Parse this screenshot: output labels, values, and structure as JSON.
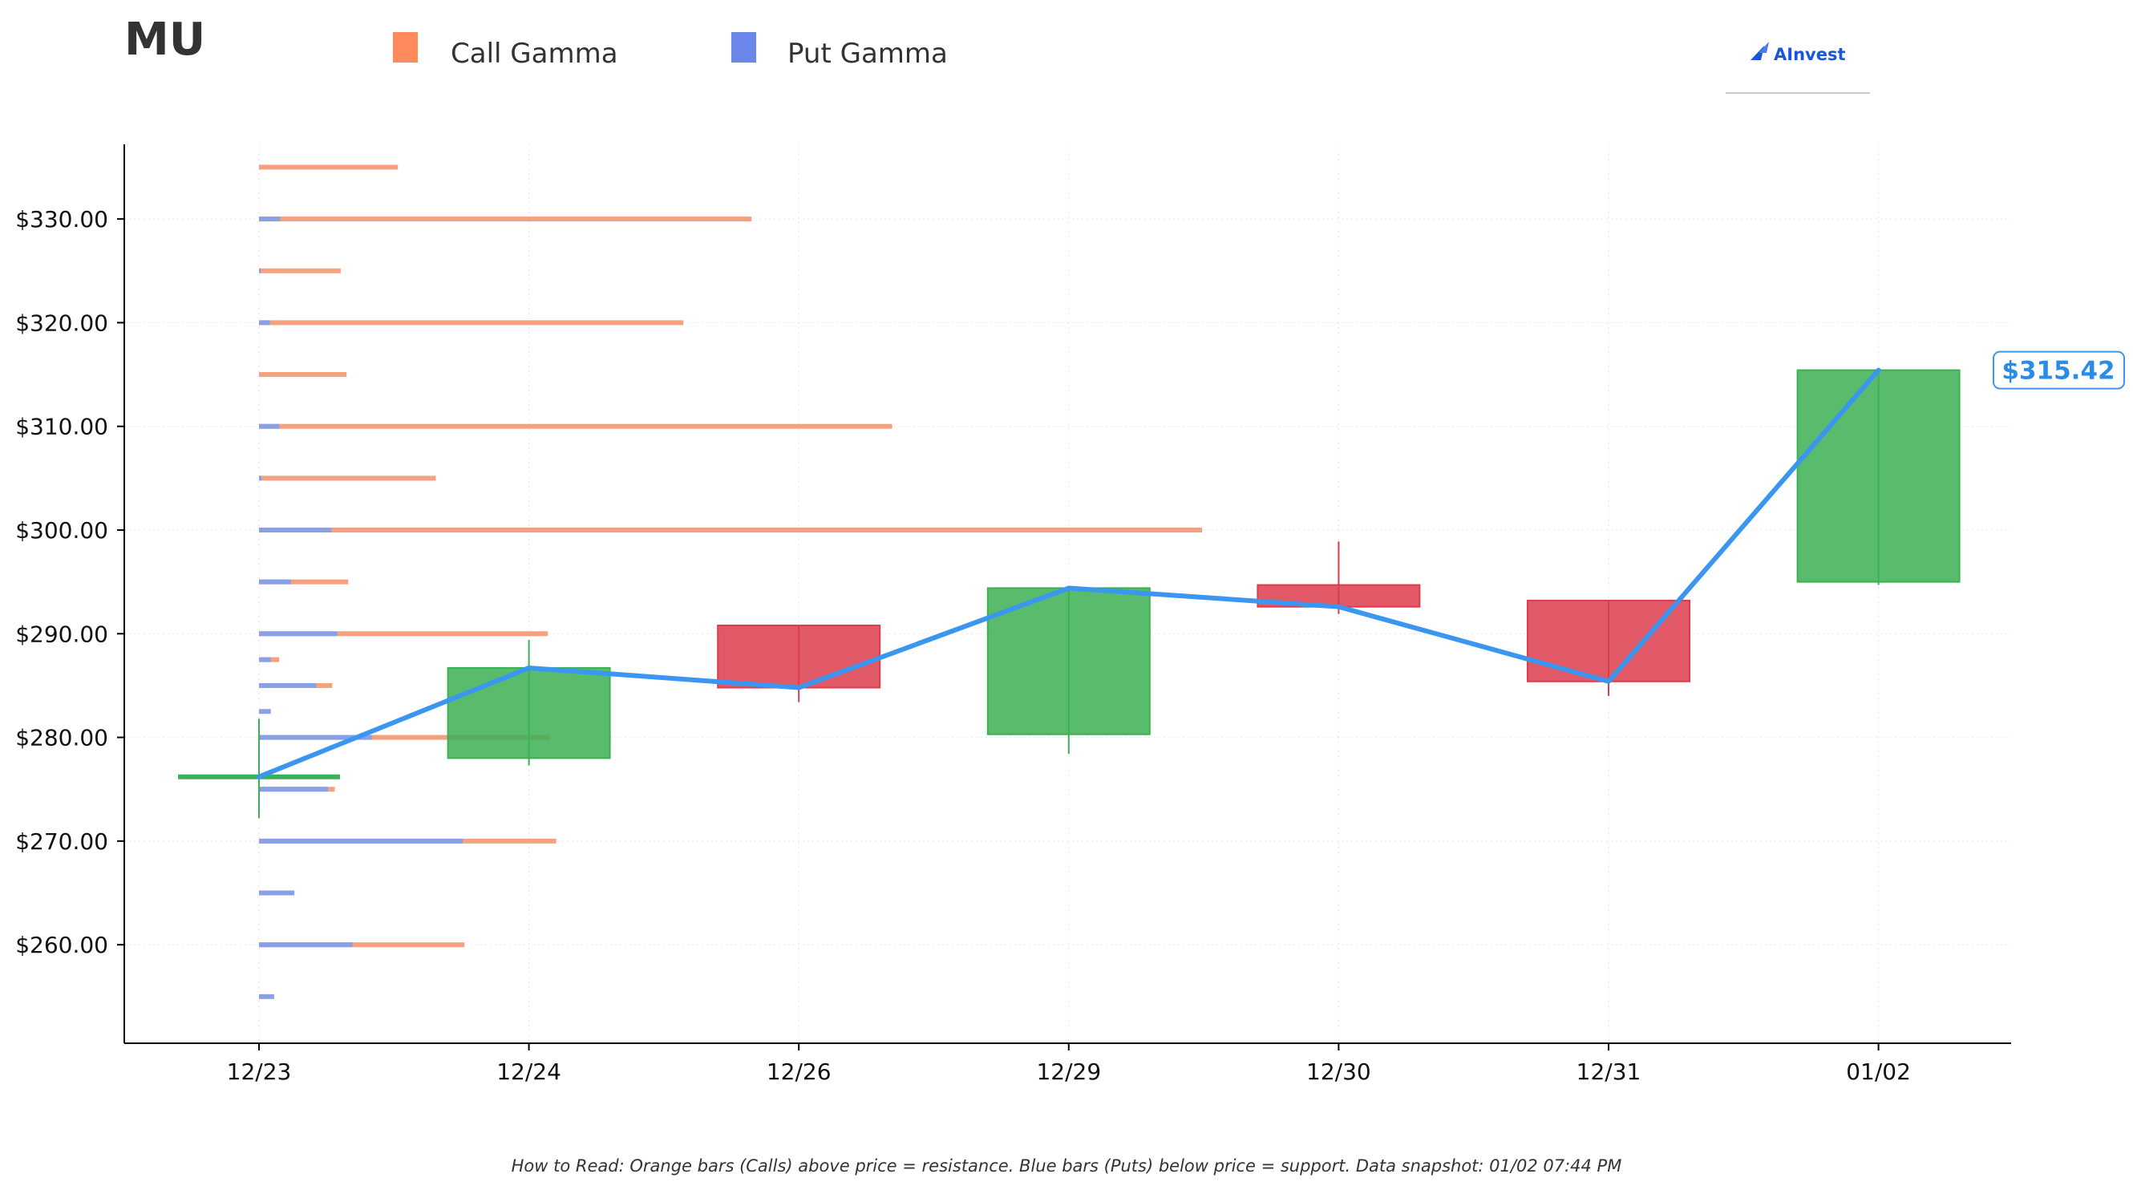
{
  "ticker": "MU",
  "legend": [
    {
      "label": "Call Gamma",
      "color": "#ff8a5c"
    },
    {
      "label": "Put Gamma",
      "color": "#6a86e8"
    }
  ],
  "logo": {
    "text": "AInvest",
    "icon": "ainvest-logo-icon"
  },
  "colors": {
    "call": "#f5a07e",
    "put": "#8aa0e6",
    "up": "#3cb054",
    "down": "#dc3c4c",
    "price_line": "#3a96ee",
    "grid": "#e6e6e6"
  },
  "footnote": "How to Read: Orange bars (Calls) above price = resistance. Blue bars (Puts) below price = support. Data snapshot: 01/02 07:44 PM",
  "chart_data": {
    "type": "candlestick",
    "title": "MU",
    "categories": [
      "12/23",
      "12/24",
      "12/26",
      "12/29",
      "12/30",
      "12/31",
      "01/02"
    ],
    "ylim": [
      250.5,
      337.2
    ],
    "yticks": [
      260,
      270,
      280,
      290,
      300,
      310,
      320,
      330
    ],
    "ytick_labels": [
      "$260.00",
      "$270.00",
      "$280.00",
      "$290.00",
      "$300.00",
      "$310.00",
      "$320.00",
      "$330.00"
    ],
    "grid": true,
    "candles": [
      {
        "date": "12/23",
        "open": 276.2,
        "close": 276.2,
        "high": 281.8,
        "low": 272.2
      },
      {
        "date": "12/24",
        "open": 278.0,
        "close": 286.7,
        "high": 289.4,
        "low": 277.3
      },
      {
        "date": "12/26",
        "open": 290.8,
        "close": 284.8,
        "high": 290.8,
        "low": 283.4
      },
      {
        "date": "12/29",
        "open": 280.3,
        "close": 294.4,
        "high": 294.4,
        "low": 278.4
      },
      {
        "date": "12/30",
        "open": 294.7,
        "close": 292.6,
        "high": 298.9,
        "low": 291.9
      },
      {
        "date": "12/31",
        "open": 293.2,
        "close": 285.4,
        "high": 293.2,
        "low": 284.0
      },
      {
        "date": "01/02",
        "open": 295.0,
        "close": 315.42,
        "high": 315.42,
        "low": 294.7
      }
    ],
    "price_line": {
      "name": "Close",
      "values": [
        276.2,
        286.7,
        284.8,
        294.4,
        292.6,
        285.4,
        315.42
      ]
    },
    "last_price_label": "$315.42",
    "gamma_levels": [
      {
        "strike": 335,
        "call": 1.65,
        "put": 0.0
      },
      {
        "strike": 330,
        "call": 5.85,
        "put": 0.25
      },
      {
        "strike": 325,
        "call": 0.97,
        "put": 0.02
      },
      {
        "strike": 320,
        "call": 5.04,
        "put": 0.13
      },
      {
        "strike": 315,
        "call": 1.04,
        "put": 0.0
      },
      {
        "strike": 310,
        "call": 7.52,
        "put": 0.24
      },
      {
        "strike": 305,
        "call": 2.1,
        "put": 0.03
      },
      {
        "strike": 300,
        "call": 11.2,
        "put": 0.86
      },
      {
        "strike": 295,
        "call": 1.06,
        "put": 0.38
      },
      {
        "strike": 290,
        "call": 3.43,
        "put": 0.93
      },
      {
        "strike": 287.5,
        "call": 0.24,
        "put": 0.14
      },
      {
        "strike": 285,
        "call": 0.87,
        "put": 0.68
      },
      {
        "strike": 282.5,
        "call": 0.0,
        "put": 0.14
      },
      {
        "strike": 280,
        "call": 3.45,
        "put": 1.34
      },
      {
        "strike": 275,
        "call": 0.9,
        "put": 0.82
      },
      {
        "strike": 270,
        "call": 3.53,
        "put": 2.42
      },
      {
        "strike": 265,
        "call": 0.0,
        "put": 0.42
      },
      {
        "strike": 260,
        "call": 2.44,
        "put": 1.11
      },
      {
        "strike": 255,
        "call": 0.0,
        "put": 0.18
      }
    ]
  }
}
